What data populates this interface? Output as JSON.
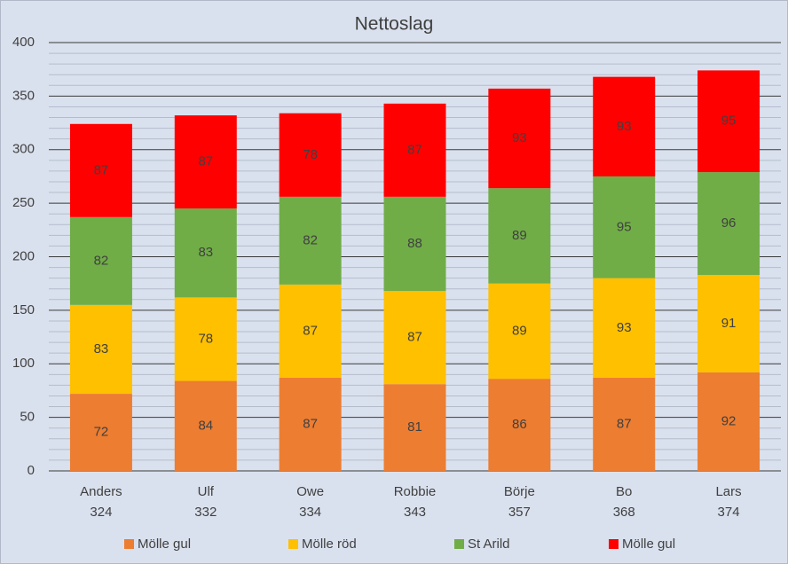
{
  "chart_data": {
    "type": "stacked_bar",
    "title": "Nettoslag",
    "categories": [
      "Anders",
      "Ulf",
      "Owe",
      "Robbie",
      "Börje",
      "Bo",
      "Lars"
    ],
    "category_totals": [
      324,
      332,
      334,
      343,
      357,
      368,
      374
    ],
    "series": [
      {
        "name": "Mölle gul",
        "color": "#ed7d31",
        "values": [
          72,
          84,
          87,
          81,
          86,
          87,
          92
        ]
      },
      {
        "name": "Mölle röd",
        "color": "#ffc000",
        "values": [
          83,
          78,
          87,
          87,
          89,
          93,
          91
        ]
      },
      {
        "name": "St Arild",
        "color": "#70ad47",
        "values": [
          82,
          83,
          82,
          88,
          89,
          95,
          96
        ]
      },
      {
        "name": "Mölle gul",
        "color": "#ff0000",
        "values": [
          87,
          87,
          78,
          87,
          93,
          93,
          95
        ]
      }
    ],
    "ylim": [
      0,
      400
    ],
    "yticks": [
      0,
      50,
      100,
      150,
      200,
      250,
      300,
      350,
      400
    ],
    "minor_yticks": [
      10,
      20,
      30,
      40,
      60,
      70,
      80,
      90,
      110,
      120,
      130,
      140,
      160,
      170,
      180,
      190,
      210,
      220,
      230,
      240,
      260,
      270,
      280,
      290,
      310,
      320,
      330,
      340,
      360,
      370,
      380,
      390
    ],
    "grid": true,
    "legend": "bottom"
  }
}
